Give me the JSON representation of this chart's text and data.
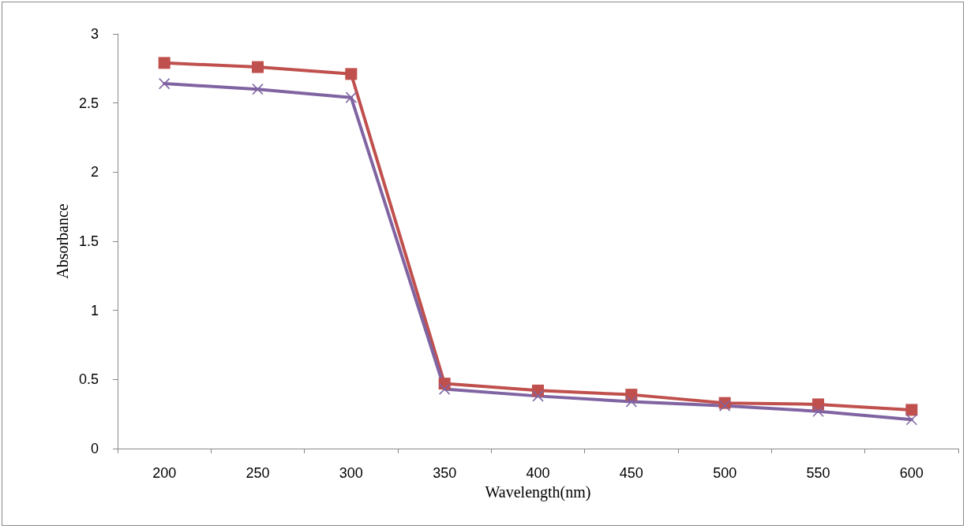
{
  "chart_data": {
    "type": "line",
    "xlabel": "Wavelength(nm)",
    "ylabel": "Absorbance",
    "categories": [
      "200",
      "250",
      "300",
      "350",
      "400",
      "450",
      "500",
      "550",
      "600"
    ],
    "series": [
      {
        "color": "#c0504d",
        "marker": "square",
        "values": [
          2.79,
          2.76,
          2.71,
          0.47,
          0.42,
          0.39,
          0.33,
          0.32,
          0.28
        ]
      },
      {
        "color": "#8064a2",
        "marker": "cross",
        "values": [
          2.64,
          2.6,
          2.54,
          0.43,
          0.38,
          0.34,
          0.31,
          0.27,
          0.21
        ]
      }
    ],
    "ylim": [
      0,
      3
    ],
    "yticks": [
      0,
      0.5,
      1,
      1.5,
      2,
      2.5,
      3
    ],
    "grid": false,
    "line_style": "solid"
  }
}
